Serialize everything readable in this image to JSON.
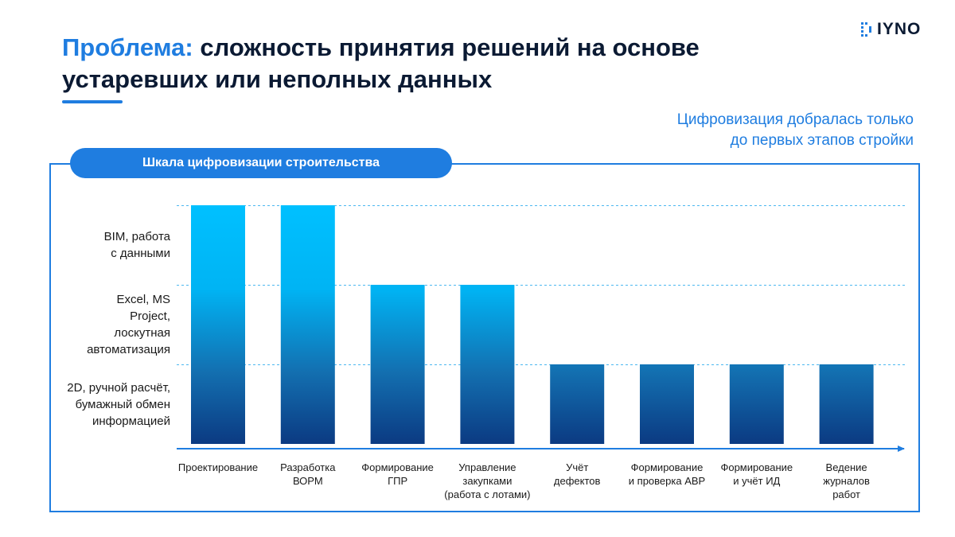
{
  "header": {
    "title_accent": "Проблема:",
    "title_rest": " сложность принятия решений на основе устаревших или неполных данных",
    "logo_text": "IYNO",
    "logo_icon": "dotted-bracket-icon"
  },
  "callout": {
    "line1": "Цифровизация добралась только",
    "line2": "до первых этапов стройки"
  },
  "colors": {
    "accent": "#1f7de0",
    "bar_top": "#00c0ff",
    "bar_bottom": "#0b3a82",
    "text": "#0b1a33"
  },
  "chart_data": {
    "type": "bar",
    "title": "Шкала цифровизации строительства",
    "levels": [
      "2D, ручной расчёт,\nбумажный обмен\nинформацией",
      "Excel, MS\nProject,\nлоскутная\nавтоматизация",
      "BIM, работа\nс данными"
    ],
    "categories": [
      "Проектирование",
      "Разработка\nВОРМ",
      "Формирование\nГПР",
      "Управление\nзакупками\n(работа с лотами)",
      "Учёт\nдефектов",
      "Формирование\nи проверка АВР",
      "Формирование\nи учёт ИД",
      "Ведение\nжурналов\nработ"
    ],
    "values": [
      3,
      3,
      2,
      2,
      1,
      1,
      1,
      1
    ],
    "ylim": [
      0,
      3
    ],
    "grid": true
  }
}
